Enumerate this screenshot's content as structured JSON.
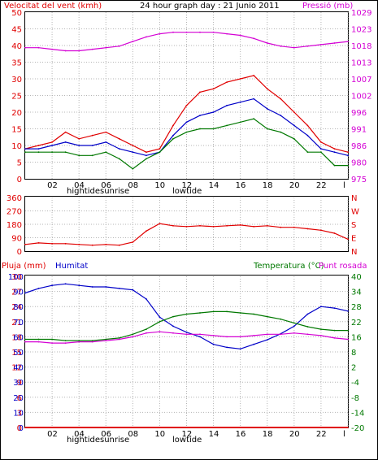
{
  "title": "24 hour graph day : 21 Junio 2011",
  "colors": {
    "red": "#e00000",
    "blue": "#0000c8",
    "green": "#007800",
    "magenta": "#d400d4",
    "grid": "#b4b4b4",
    "frame": "#000000"
  },
  "x_ticks": [
    "02",
    "04",
    "06",
    "08",
    "10",
    "12",
    "14",
    "16",
    "18",
    "20",
    "22",
    "l"
  ],
  "tide_labels": [
    "hightide",
    "sunrise",
    "lowtide"
  ],
  "chart_data": [
    {
      "type": "line",
      "name": "wind-pressure",
      "left_label": "Velocitat del vent (kmh)",
      "right_label": "Pressió (mb)",
      "left_ticks": [
        "0",
        "5",
        "10",
        "15",
        "20",
        "25",
        "30",
        "35",
        "40",
        "45",
        "50"
      ],
      "right_ticks": [
        "975",
        "980",
        "986",
        "991",
        "996",
        "1002",
        "1007",
        "1013",
        "1018",
        "1023",
        "1029"
      ],
      "ylim_left": [
        0,
        50
      ],
      "ylim_right": [
        975,
        1029
      ],
      "x": [
        0,
        1,
        2,
        3,
        4,
        5,
        6,
        7,
        8,
        9,
        10,
        11,
        12,
        13,
        14,
        15,
        16,
        17,
        18,
        19,
        20,
        21,
        22,
        23,
        24
      ],
      "series": [
        {
          "key": "gust",
          "color": "red",
          "axis": "left",
          "values": [
            9,
            10,
            11,
            14,
            12,
            13,
            14,
            12,
            10,
            8,
            9,
            16,
            22,
            26,
            27,
            29,
            30,
            31,
            27,
            24,
            20,
            16,
            11,
            9,
            8
          ]
        },
        {
          "key": "speed",
          "color": "blue",
          "axis": "left",
          "values": [
            9,
            9,
            10,
            11,
            10,
            10,
            11,
            9,
            8,
            7,
            8,
            13,
            17,
            19,
            20,
            22,
            23,
            24,
            21,
            19,
            16,
            13,
            9,
            8,
            7
          ]
        },
        {
          "key": "dir_speed",
          "color": "green",
          "axis": "left",
          "values": [
            8,
            8,
            8,
            8,
            7,
            7,
            8,
            6,
            3,
            6,
            8,
            12,
            14,
            15,
            15,
            16,
            17,
            18,
            15,
            14,
            12,
            8,
            8,
            4,
            4
          ]
        },
        {
          "key": "pressure",
          "color": "magenta",
          "axis": "right",
          "values": [
            1017.5,
            1017.5,
            1017,
            1016.5,
            1016.5,
            1017,
            1017.5,
            1018,
            1019.5,
            1021,
            1022,
            1022.5,
            1022.5,
            1022.5,
            1022.5,
            1022,
            1021.5,
            1020.5,
            1019,
            1018,
            1017.5,
            1018,
            1018.5,
            1019,
            1019.5
          ]
        }
      ]
    },
    {
      "type": "line",
      "name": "wind-direction",
      "left_ticks": [
        "0",
        "90",
        "180",
        "270",
        "360"
      ],
      "right_ticks": [
        "N",
        "E",
        "S",
        "W",
        "N"
      ],
      "ylim": [
        0,
        360
      ],
      "x": [
        0,
        1,
        2,
        3,
        4,
        5,
        6,
        7,
        8,
        9,
        10,
        11,
        12,
        13,
        14,
        15,
        16,
        17,
        18,
        19,
        20,
        21,
        22,
        23,
        24
      ],
      "series": [
        {
          "key": "direction",
          "color": "red",
          "values": [
            45,
            55,
            50,
            50,
            45,
            40,
            45,
            40,
            60,
            135,
            185,
            170,
            165,
            170,
            165,
            170,
            175,
            165,
            170,
            160,
            160,
            150,
            140,
            120,
            80
          ]
        }
      ]
    },
    {
      "type": "line",
      "name": "rain-humidity-temp",
      "left_label_rain": "Pluja (mm)",
      "left_label_hum": "Humitat",
      "right_label_temp": "Temperatura (°C)",
      "right_label_dew": "Punt rosada",
      "rain_ticks": [
        "0",
        "3",
        "6",
        "9",
        "12",
        "15",
        "18",
        "21",
        "24",
        "27",
        "30"
      ],
      "hum_ticks": [
        "0",
        "10",
        "20",
        "30",
        "40",
        "50",
        "60",
        "70",
        "80",
        "90",
        "100"
      ],
      "temp_ticks": [
        "-20",
        "-14",
        "-8",
        "-4",
        "2",
        "8",
        "16",
        "22",
        "28",
        "34",
        "40"
      ],
      "ylim_left": [
        0,
        100
      ],
      "ylim_right": [
        -20,
        40
      ],
      "x": [
        0,
        1,
        2,
        3,
        4,
        5,
        6,
        7,
        8,
        9,
        10,
        11,
        12,
        13,
        14,
        15,
        16,
        17,
        18,
        19,
        20,
        21,
        22,
        23,
        24
      ],
      "series": [
        {
          "key": "humidity",
          "color": "blue",
          "axis": "left",
          "values": [
            89,
            92,
            94,
            95,
            94,
            93,
            93,
            92,
            91,
            85,
            73,
            67,
            63,
            60,
            55,
            53,
            52,
            55,
            58,
            62,
            67,
            75,
            80,
            79,
            77
          ]
        },
        {
          "key": "temperature",
          "color": "green",
          "axis": "right",
          "values": [
            15,
            15,
            15,
            14.5,
            14.5,
            14.5,
            15,
            15.5,
            17,
            19,
            22,
            24,
            25,
            25.5,
            26,
            26,
            25.5,
            25,
            24,
            23,
            21.5,
            20,
            19,
            18.5,
            18.5
          ]
        },
        {
          "key": "dew_point",
          "color": "magenta",
          "axis": "right",
          "values": [
            14,
            14,
            13.5,
            13.5,
            14,
            14,
            14.5,
            15,
            16,
            17.5,
            18,
            17.5,
            17,
            17,
            16.5,
            16,
            16,
            16.5,
            17,
            17,
            17.5,
            17,
            16.5,
            15.5,
            15
          ]
        },
        {
          "key": "rain",
          "color": "red",
          "axis": "left",
          "values": [
            0,
            0,
            0,
            0,
            0,
            0,
            0,
            0,
            0,
            0,
            0,
            0,
            0,
            0,
            0,
            0,
            0,
            0,
            0,
            0,
            0,
            0,
            0,
            0,
            0
          ]
        }
      ]
    }
  ]
}
